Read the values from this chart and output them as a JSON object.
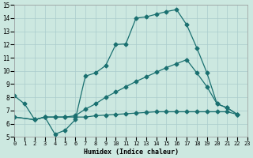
{
  "xlabel": "Humidex (Indice chaleur)",
  "bg_color": "#cce8e0",
  "grid_color": "#aacccc",
  "line_color": "#1a7070",
  "xlim": [
    0,
    23
  ],
  "ylim": [
    5,
    15
  ],
  "line1_x": [
    0,
    1,
    2,
    3,
    4,
    5,
    6,
    7,
    8,
    9,
    10,
    11,
    12,
    13,
    14,
    15,
    16,
    17,
    18,
    19,
    20,
    21,
    22
  ],
  "line1_y": [
    8.1,
    7.5,
    6.3,
    6.5,
    5.2,
    5.5,
    6.3,
    9.6,
    9.85,
    10.4,
    12.0,
    12.05,
    14.0,
    14.1,
    14.3,
    14.5,
    14.65,
    13.5,
    11.75,
    9.85,
    7.5,
    7.2,
    6.7
  ],
  "line2_x": [
    0,
    2,
    3,
    4,
    5,
    6,
    7,
    8,
    9,
    10,
    11,
    12,
    13,
    14,
    15,
    16,
    17,
    18,
    19,
    20,
    21,
    22
  ],
  "line2_y": [
    6.5,
    6.3,
    6.5,
    6.5,
    6.5,
    6.5,
    6.5,
    6.6,
    6.65,
    6.7,
    6.75,
    6.8,
    6.85,
    6.9,
    6.9,
    6.9,
    6.9,
    6.9,
    6.9,
    6.9,
    6.9,
    6.7
  ],
  "line3_x": [
    0,
    2,
    3,
    4,
    5,
    6,
    7,
    8,
    9,
    10,
    11,
    12,
    13,
    14,
    15,
    16,
    17,
    18,
    19,
    20,
    21,
    22
  ],
  "line3_y": [
    6.5,
    6.3,
    6.5,
    6.5,
    6.5,
    6.6,
    7.1,
    7.5,
    8.0,
    8.4,
    8.8,
    9.2,
    9.55,
    9.9,
    10.25,
    10.55,
    10.85,
    9.85,
    8.8,
    7.5,
    7.2,
    6.7
  ],
  "markersize": 2.5,
  "linewidth": 0.9
}
